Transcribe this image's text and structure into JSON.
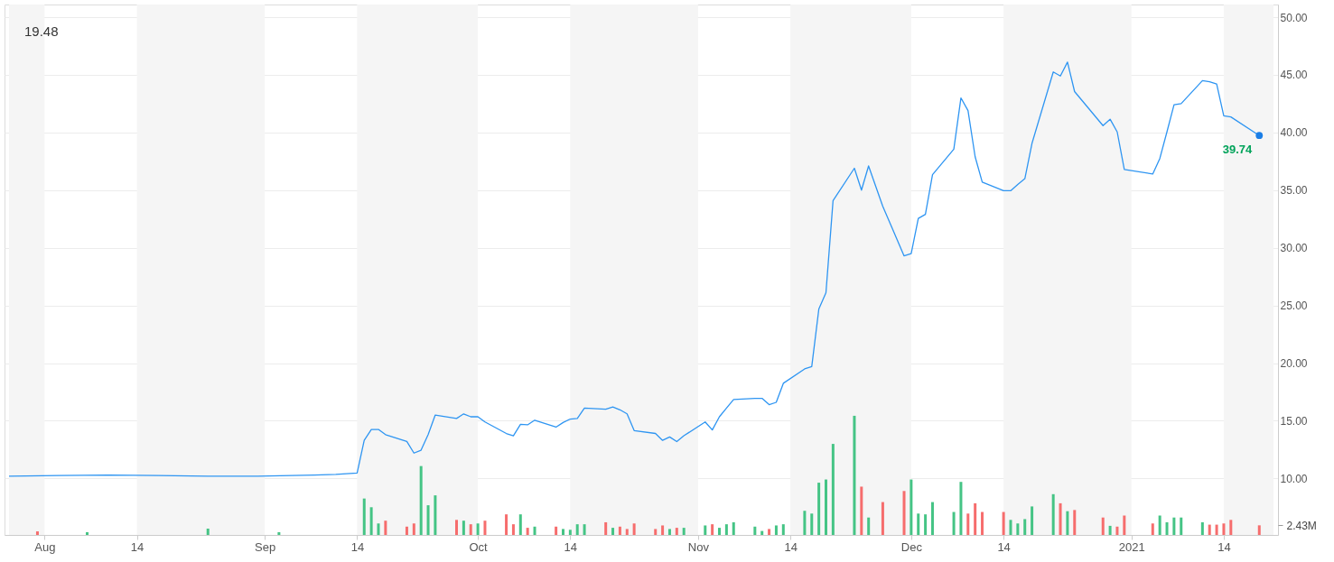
{
  "chart_data": {
    "type": "line",
    "annotations": [
      "19.48",
      {
        "text": "39.74",
        "x": "2021-01-19",
        "y": 39.74
      }
    ],
    "xlim": [
      "2020-07-27",
      "2021-01-21"
    ],
    "xticks": [
      {
        "value": "2020-08-01",
        "label": "Aug"
      },
      {
        "value": "2020-08-14",
        "label": "14"
      },
      {
        "value": "2020-09-01",
        "label": "Sep"
      },
      {
        "value": "2020-09-14",
        "label": "14"
      },
      {
        "value": "2020-10-01",
        "label": "Oct"
      },
      {
        "value": "2020-10-14",
        "label": "14"
      },
      {
        "value": "2020-11-01",
        "label": "Nov"
      },
      {
        "value": "2020-11-14",
        "label": "14"
      },
      {
        "value": "2020-12-01",
        "label": "Dec"
      },
      {
        "value": "2020-12-14",
        "label": "14"
      },
      {
        "value": "2021-01-01",
        "label": "2021"
      },
      {
        "value": "2021-01-14",
        "label": "14"
      }
    ],
    "ylim": [
      5.1,
      51.1
    ],
    "yticks": [
      {
        "value": 10,
        "label": "10.00"
      },
      {
        "value": 15,
        "label": "15.00"
      },
      {
        "value": 20,
        "label": "20.00"
      },
      {
        "value": 25,
        "label": "25.00"
      },
      {
        "value": 30,
        "label": "30.00"
      },
      {
        "value": 35,
        "label": "35.00"
      },
      {
        "value": 40,
        "label": "40.00"
      },
      {
        "value": 45,
        "label": "45.00"
      },
      {
        "value": 50,
        "label": "50.00"
      }
    ],
    "y2lim": [
      0,
      134
    ],
    "y2ticks": [
      {
        "value": 2.43,
        "label": "2.43M"
      }
    ],
    "grid": "y",
    "bands": [
      {
        "axis": "x",
        "from": "2020-07-27",
        "to": "2020-08-01",
        "color": "#f5f5f5"
      },
      {
        "axis": "x",
        "from": "2020-08-14",
        "to": "2020-09-01",
        "color": "#f5f5f5"
      },
      {
        "axis": "x",
        "from": "2020-09-14",
        "to": "2020-10-01",
        "color": "#f5f5f5"
      },
      {
        "axis": "x",
        "from": "2020-10-14",
        "to": "2020-11-01",
        "color": "#f5f5f5"
      },
      {
        "axis": "x",
        "from": "2020-11-14",
        "to": "2020-12-01",
        "color": "#f5f5f5"
      },
      {
        "axis": "x",
        "from": "2020-12-14",
        "to": "2021-01-01",
        "color": "#f5f5f5"
      },
      {
        "axis": "x",
        "from": "2021-01-14",
        "to": "2021-01-21",
        "color": "#f5f5f5"
      }
    ],
    "series": [
      {
        "type": "bar",
        "axis": "y2",
        "x": [
          "2020-07-31",
          "2020-08-07",
          "2020-08-24",
          "2020-09-03",
          "2020-09-15",
          "2020-09-16",
          "2020-09-17",
          "2020-09-18",
          "2020-09-21",
          "2020-09-22",
          "2020-09-23",
          "2020-09-24",
          "2020-09-25",
          "2020-09-28",
          "2020-09-29",
          "2020-09-30",
          "2020-10-01",
          "2020-10-02",
          "2020-10-05",
          "2020-10-06",
          "2020-10-07",
          "2020-10-08",
          "2020-10-09",
          "2020-10-12",
          "2020-10-13",
          "2020-10-14",
          "2020-10-15",
          "2020-10-16",
          "2020-10-19",
          "2020-10-20",
          "2020-10-21",
          "2020-10-22",
          "2020-10-23",
          "2020-10-26",
          "2020-10-27",
          "2020-10-28",
          "2020-10-29",
          "2020-10-30",
          "2020-11-02",
          "2020-11-03",
          "2020-11-04",
          "2020-11-05",
          "2020-11-06",
          "2020-11-09",
          "2020-11-10",
          "2020-11-11",
          "2020-11-12",
          "2020-11-13",
          "2020-11-16",
          "2020-11-17",
          "2020-11-18",
          "2020-11-19",
          "2020-11-20",
          "2020-11-23",
          "2020-11-24",
          "2020-11-25",
          "2020-11-27",
          "2020-11-30",
          "2020-12-01",
          "2020-12-02",
          "2020-12-03",
          "2020-12-04",
          "2020-12-07",
          "2020-12-08",
          "2020-12-09",
          "2020-12-10",
          "2020-12-11",
          "2020-12-14",
          "2020-12-15",
          "2020-12-16",
          "2020-12-17",
          "2020-12-18",
          "2020-12-21",
          "2020-12-22",
          "2020-12-23",
          "2020-12-24",
          "2020-12-28",
          "2020-12-29",
          "2020-12-30",
          "2020-12-31",
          "2021-01-04",
          "2021-01-05",
          "2021-01-06",
          "2021-01-07",
          "2021-01-08",
          "2021-01-11",
          "2021-01-12",
          "2021-01-13",
          "2021-01-14",
          "2021-01-15",
          "2021-01-19"
        ],
        "values": [
          0.9,
          0.7,
          1.6,
          0.7,
          9.2,
          7.0,
          2.9,
          3.6,
          2.1,
          2.9,
          17.4,
          7.5,
          10.0,
          3.8,
          3.6,
          2.7,
          2.9,
          3.6,
          5.2,
          2.7,
          5.2,
          1.8,
          2.1,
          2.1,
          1.5,
          1.3,
          2.7,
          2.7,
          3.2,
          1.8,
          2.1,
          1.5,
          2.9,
          1.5,
          2.4,
          1.5,
          1.8,
          1.8,
          2.4,
          2.7,
          1.8,
          2.7,
          3.2,
          2.1,
          1.0,
          1.5,
          2.4,
          2.7,
          6.1,
          5.4,
          13.2,
          14.0,
          23.0,
          30.1,
          12.2,
          4.4,
          8.3,
          11.1,
          14.0,
          5.4,
          5.2,
          8.3,
          5.8,
          13.4,
          5.4,
          8.0,
          5.8,
          5.8,
          3.8,
          2.9,
          4.0,
          7.2,
          10.3,
          8.0,
          6.0,
          6.3,
          4.4,
          2.3,
          2.1,
          4.9,
          2.9,
          4.9,
          3.2,
          4.4,
          4.4,
          3.2,
          2.6,
          2.6,
          2.9,
          3.8,
          2.43
        ],
        "colors": [
          "#f66d6d",
          "#45c485",
          "#45c485",
          "#45c485",
          "#45c485",
          "#45c485",
          "#45c485",
          "#f66d6d",
          "#f66d6d",
          "#f66d6d",
          "#45c485",
          "#45c485",
          "#45c485",
          "#f66d6d",
          "#45c485",
          "#f66d6d",
          "#45c485",
          "#f66d6d",
          "#f66d6d",
          "#f66d6d",
          "#45c485",
          "#f66d6d",
          "#45c485",
          "#f66d6d",
          "#45c485",
          "#45c485",
          "#45c485",
          "#45c485",
          "#f66d6d",
          "#45c485",
          "#f66d6d",
          "#f66d6d",
          "#f66d6d",
          "#f66d6d",
          "#f66d6d",
          "#45c485",
          "#f66d6d",
          "#45c485",
          "#45c485",
          "#f66d6d",
          "#45c485",
          "#45c485",
          "#45c485",
          "#45c485",
          "#45c485",
          "#f66d6d",
          "#45c485",
          "#45c485",
          "#45c485",
          "#45c485",
          "#45c485",
          "#45c485",
          "#45c485",
          "#45c485",
          "#f66d6d",
          "#45c485",
          "#f66d6d",
          "#f66d6d",
          "#45c485",
          "#45c485",
          "#45c485",
          "#45c485",
          "#45c485",
          "#45c485",
          "#f66d6d",
          "#f66d6d",
          "#f66d6d",
          "#f66d6d",
          "#45c485",
          "#45c485",
          "#45c485",
          "#45c485",
          "#45c485",
          "#f66d6d",
          "#45c485",
          "#f66d6d",
          "#f66d6d",
          "#45c485",
          "#f66d6d",
          "#f66d6d",
          "#f66d6d",
          "#45c485",
          "#45c485",
          "#45c485",
          "#45c485",
          "#45c485",
          "#f66d6d",
          "#f66d6d",
          "#f66d6d",
          "#f66d6d",
          "#f66d6d"
        ]
      },
      {
        "color": "#2e95f2",
        "x": [
          "2020-07-27",
          "2020-08-03",
          "2020-08-10",
          "2020-08-17",
          "2020-08-24",
          "2020-08-31",
          "2020-09-08",
          "2020-09-11",
          "2020-09-14",
          "2020-09-15",
          "2020-09-16",
          "2020-09-17",
          "2020-09-18",
          "2020-09-21",
          "2020-09-22",
          "2020-09-23",
          "2020-09-24",
          "2020-09-25",
          "2020-09-28",
          "2020-09-29",
          "2020-09-30",
          "2020-10-01",
          "2020-10-02",
          "2020-10-05",
          "2020-10-06",
          "2020-10-07",
          "2020-10-08",
          "2020-10-09",
          "2020-10-12",
          "2020-10-13",
          "2020-10-14",
          "2020-10-15",
          "2020-10-16",
          "2020-10-19",
          "2020-10-20",
          "2020-10-21",
          "2020-10-22",
          "2020-10-23",
          "2020-10-26",
          "2020-10-27",
          "2020-10-28",
          "2020-10-29",
          "2020-10-30",
          "2020-11-02",
          "2020-11-03",
          "2020-11-04",
          "2020-11-05",
          "2020-11-06",
          "2020-11-09",
          "2020-11-10",
          "2020-11-11",
          "2020-11-12",
          "2020-11-13",
          "2020-11-16",
          "2020-11-17",
          "2020-11-18",
          "2020-11-19",
          "2020-11-20",
          "2020-11-23",
          "2020-11-24",
          "2020-11-25",
          "2020-11-27",
          "2020-11-30",
          "2020-12-01",
          "2020-12-02",
          "2020-12-03",
          "2020-12-04",
          "2020-12-07",
          "2020-12-08",
          "2020-12-09",
          "2020-12-10",
          "2020-12-11",
          "2020-12-14",
          "2020-12-15",
          "2020-12-16",
          "2020-12-17",
          "2020-12-18",
          "2020-12-21",
          "2020-12-22",
          "2020-12-23",
          "2020-12-24",
          "2020-12-28",
          "2020-12-29",
          "2020-12-30",
          "2020-12-31",
          "2021-01-04",
          "2021-01-05",
          "2021-01-06",
          "2021-01-07",
          "2021-01-08",
          "2021-01-11",
          "2021-01-12",
          "2021-01-13",
          "2021-01-14",
          "2021-01-15",
          "2021-01-19"
        ],
        "values": [
          10.2,
          10.25,
          10.3,
          10.25,
          10.2,
          10.2,
          10.3,
          10.35,
          10.47,
          13.3,
          14.25,
          14.25,
          13.8,
          13.2,
          12.2,
          12.45,
          13.8,
          15.5,
          15.2,
          15.6,
          15.35,
          15.35,
          14.9,
          13.9,
          13.7,
          14.7,
          14.65,
          15.05,
          14.45,
          14.85,
          15.15,
          15.2,
          16.1,
          16.0,
          16.2,
          15.95,
          15.6,
          14.15,
          13.9,
          13.3,
          13.6,
          13.2,
          13.7,
          14.9,
          14.2,
          15.35,
          16.1,
          16.85,
          16.95,
          16.95,
          16.4,
          16.6,
          18.25,
          19.5,
          19.7,
          24.7,
          26.1,
          34.1,
          36.9,
          35.0,
          37.1,
          33.6,
          29.3,
          29.5,
          32.55,
          32.9,
          36.35,
          38.55,
          43.0,
          41.9,
          37.9,
          35.7,
          34.95,
          34.95,
          35.5,
          36.0,
          39.05,
          45.25,
          44.9,
          46.1,
          43.55,
          40.6,
          41.15,
          40.05,
          36.8,
          36.4,
          37.75,
          40.05,
          42.4,
          42.5,
          44.5,
          44.4,
          44.2,
          41.45,
          41.35,
          39.74
        ]
      }
    ]
  }
}
